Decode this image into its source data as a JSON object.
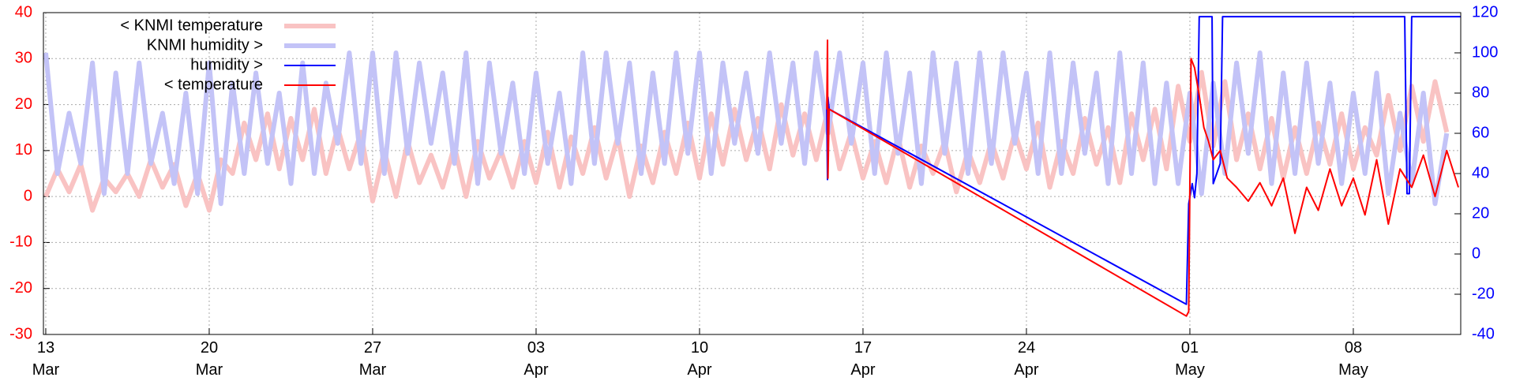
{
  "chart_data": {
    "type": "line",
    "xlim": [
      -0.1,
      60.6
    ],
    "xticks": [
      {
        "value": 0,
        "label": "13\nMar"
      },
      {
        "value": 7,
        "label": "20\nMar"
      },
      {
        "value": 14,
        "label": "27\nMar"
      },
      {
        "value": 21,
        "label": "03\nApr"
      },
      {
        "value": 28,
        "label": "10\nApr"
      },
      {
        "value": 35,
        "label": "17\nApr"
      },
      {
        "value": 42,
        "label": "24\nApr"
      },
      {
        "value": 49,
        "label": "01\nMay"
      },
      {
        "value": 56,
        "label": "08\nMay"
      }
    ],
    "ylim": [
      -30,
      40
    ],
    "yticks": [
      -30,
      -20,
      -10,
      0,
      10,
      20,
      30,
      40
    ],
    "ycolor": "#ff0000",
    "y2lim": [
      -40,
      120
    ],
    "y2ticks": [
      -40,
      -20,
      0,
      20,
      40,
      60,
      80,
      100,
      120
    ],
    "y2color": "#0000ff",
    "grid": true,
    "legend": "top-left",
    "series": [
      {
        "name": "< KNMI temperature",
        "color": "#f9c3c3",
        "width": 6,
        "axis": "y",
        "x": [
          0,
          0.5,
          1,
          1.5,
          2,
          2.5,
          3,
          3.5,
          4,
          4.5,
          5,
          5.5,
          6,
          6.5,
          7,
          7.5,
          8,
          8.5,
          9,
          9.5,
          10,
          10.5,
          11,
          11.5,
          12,
          12.5,
          13,
          13.5,
          14,
          14.5,
          15,
          15.5,
          16,
          16.5,
          17,
          17.5,
          18,
          18.5,
          19,
          19.5,
          20,
          20.5,
          21,
          21.5,
          22,
          22.5,
          23,
          23.5,
          24,
          24.5,
          25,
          25.5,
          26,
          26.5,
          27,
          27.5,
          28,
          28.5,
          29,
          29.5,
          30,
          30.5,
          31,
          31.5,
          32,
          32.5,
          33,
          33.5,
          34,
          34.5,
          35,
          35.5,
          36,
          36.5,
          37,
          37.5,
          38,
          38.5,
          39,
          39.5,
          40,
          40.5,
          41,
          41.5,
          42,
          42.5,
          43,
          43.5,
          44,
          44.5,
          45,
          45.5,
          46,
          46.5,
          47,
          47.5,
          48,
          48.5,
          49,
          49.5,
          50,
          50.5,
          51,
          51.5,
          52,
          52.5,
          53,
          53.5,
          54,
          54.5,
          55,
          55.5,
          56,
          56.5,
          57,
          57.5,
          58,
          58.5,
          59,
          59.5,
          60
        ],
        "values": [
          0,
          6,
          1,
          7,
          -3,
          4,
          1,
          5,
          0,
          8,
          2,
          7,
          -2,
          5,
          -3,
          8,
          5,
          16,
          8,
          18,
          6,
          17,
          8,
          19,
          5,
          15,
          6,
          14,
          -1,
          10,
          0,
          12,
          3,
          9,
          2,
          11,
          0,
          12,
          4,
          10,
          2,
          12,
          3,
          14,
          2,
          13,
          5,
          15,
          4,
          13,
          0,
          11,
          3,
          14,
          5,
          16,
          4,
          18,
          7,
          19,
          8,
          17,
          6,
          20,
          9,
          18,
          8,
          19,
          6,
          14,
          4,
          12,
          3,
          13,
          2,
          11,
          5,
          12,
          1,
          10,
          3,
          12,
          4,
          14,
          6,
          16,
          2,
          12,
          5,
          17,
          7,
          15,
          3,
          18,
          8,
          19,
          6,
          24,
          12,
          27,
          11,
          25,
          8,
          18,
          6,
          17,
          4,
          15,
          5,
          16,
          7,
          18,
          6,
          15,
          9,
          22,
          10,
          24,
          12,
          25,
          14
        ]
      },
      {
        "name": "KNMI humidity >",
        "color": "#c3c3f7",
        "width": 6,
        "axis": "y2",
        "x": [
          0,
          0.5,
          1,
          1.5,
          2,
          2.5,
          3,
          3.5,
          4,
          4.5,
          5,
          5.5,
          6,
          6.5,
          7,
          7.5,
          8,
          8.5,
          9,
          9.5,
          10,
          10.5,
          11,
          11.5,
          12,
          12.5,
          13,
          13.5,
          14,
          14.5,
          15,
          15.5,
          16,
          16.5,
          17,
          17.5,
          18,
          18.5,
          19,
          19.5,
          20,
          20.5,
          21,
          21.5,
          22,
          22.5,
          23,
          23.5,
          24,
          24.5,
          25,
          25.5,
          26,
          26.5,
          27,
          27.5,
          28,
          28.5,
          29,
          29.5,
          30,
          30.5,
          31,
          31.5,
          32,
          32.5,
          33,
          33.5,
          34,
          34.5,
          35,
          35.5,
          36,
          36.5,
          37,
          37.5,
          38,
          38.5,
          39,
          39.5,
          40,
          40.5,
          41,
          41.5,
          42,
          42.5,
          43,
          43.5,
          44,
          44.5,
          45,
          45.5,
          46,
          46.5,
          47,
          47.5,
          48,
          48.5,
          49,
          49.5,
          50,
          50.5,
          51,
          51.5,
          52,
          52.5,
          53,
          53.5,
          54,
          54.5,
          55,
          55.5,
          56,
          56.5,
          57,
          57.5,
          58,
          58.5,
          59,
          59.5,
          60
        ],
        "values": [
          100,
          40,
          70,
          45,
          95,
          30,
          90,
          40,
          95,
          45,
          70,
          35,
          80,
          30,
          95,
          25,
          85,
          40,
          90,
          45,
          80,
          35,
          95,
          40,
          85,
          55,
          100,
          45,
          100,
          40,
          100,
          50,
          95,
          55,
          90,
          45,
          100,
          35,
          95,
          50,
          85,
          40,
          90,
          45,
          80,
          35,
          100,
          45,
          100,
          55,
          95,
          40,
          90,
          45,
          100,
          50,
          100,
          40,
          95,
          55,
          90,
          50,
          100,
          55,
          95,
          45,
          100,
          60,
          100,
          55,
          95,
          40,
          100,
          50,
          90,
          35,
          100,
          50,
          95,
          40,
          100,
          45,
          100,
          55,
          90,
          40,
          100,
          40,
          95,
          50,
          90,
          35,
          100,
          40,
          95,
          35,
          85,
          35,
          80,
          30,
          85,
          40,
          95,
          50,
          100,
          35,
          90,
          40,
          95,
          45,
          85,
          35,
          80,
          40,
          90,
          30,
          70,
          35,
          80,
          25,
          60
        ]
      },
      {
        "name": "humidity >",
        "color": "#0000ff",
        "width": 2,
        "axis": "y2",
        "x": [
          33.45,
          33.48,
          33.5,
          33.55,
          48.85,
          48.95,
          49.1,
          49.2,
          49.3,
          49.4,
          49.95,
          50.0,
          50.3,
          50.4,
          58.2,
          58.3,
          58.4,
          58.5,
          60.6
        ],
        "values": [
          72,
          37,
          78,
          72,
          -25,
          25,
          35,
          28,
          40,
          118,
          118,
          35,
          45,
          118,
          118,
          30,
          30,
          118,
          118
        ]
      },
      {
        "name": "< temperature",
        "color": "#ff0000",
        "width": 2,
        "axis": "y",
        "x": [
          33.45,
          33.48,
          33.5,
          33.55,
          48.85,
          48.95,
          49.05,
          49.2,
          49.4,
          49.6,
          49.8,
          50.0,
          50.3,
          50.6,
          51.0,
          51.5,
          52,
          52.5,
          53,
          53.5,
          54,
          54.5,
          55,
          55.5,
          56,
          56.5,
          57,
          57.5,
          58,
          58.5,
          59,
          59.5,
          60,
          60.5
        ],
        "values": [
          19,
          34,
          4,
          19,
          -26,
          -25,
          30,
          28,
          22,
          15,
          12,
          8,
          10,
          4,
          2,
          -1,
          3,
          -2,
          4,
          -8,
          2,
          -3,
          6,
          -2,
          4,
          -4,
          8,
          -6,
          6,
          2,
          9,
          0,
          10,
          2
        ]
      }
    ]
  }
}
